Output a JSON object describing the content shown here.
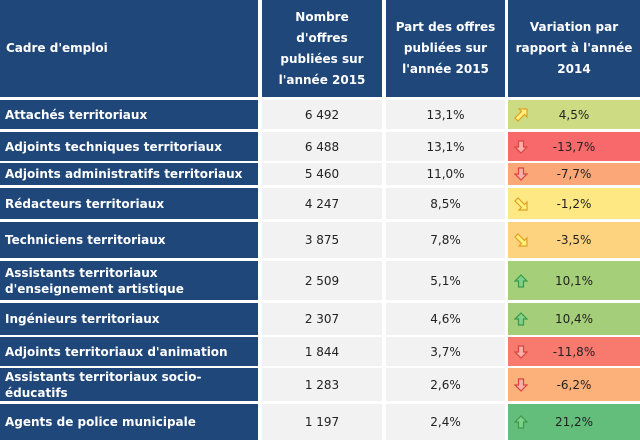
{
  "headers": [
    "Cadre d'emploi",
    "Nombre d'offres publiées sur l'année 2015",
    "Part des offres publiées sur l'année 2015",
    "Variation par rapport à l'année 2014"
  ],
  "rows": [
    {
      "name": "Attachés territoriaux",
      "count": "6 492",
      "share": "13,1%",
      "variation": "4,5%",
      "trend": "up-right",
      "color": "#cddc82"
    },
    {
      "name": "Adjoints techniques territoriaux",
      "count": "6 488",
      "share": "13,1%",
      "variation": "-13,7%",
      "trend": "down",
      "color": "#f8696b"
    },
    {
      "name": "Adjoints administratifs territoriaux",
      "count": "5 460",
      "share": "11,0%",
      "variation": "-7,7%",
      "trend": "down",
      "color": "#fba777"
    },
    {
      "name": "Rédacteurs territoriaux",
      "count": "4 247",
      "share": "8,5%",
      "variation": "-1,2%",
      "trend": "down-right",
      "color": "#fee883"
    },
    {
      "name": "Techniciens territoriaux",
      "count": "3 875",
      "share": "7,8%",
      "variation": "-3,5%",
      "trend": "down-right",
      "color": "#fed380"
    },
    {
      "name": "Assistants territoriaux d'enseignement artistique",
      "count": "2 509",
      "share": "5,1%",
      "variation": "10,1%",
      "trend": "up",
      "color": "#a6cf7a"
    },
    {
      "name": "Ingénieurs territoriaux",
      "count": "2 307",
      "share": "4,6%",
      "variation": "10,4%",
      "trend": "up",
      "color": "#a4ce7a"
    },
    {
      "name": "Adjoints territoriaux d'animation",
      "count": "1 844",
      "share": "3,7%",
      "variation": "-11,8%",
      "trend": "down",
      "color": "#f87a6e"
    },
    {
      "name": "Assistants territoriaux socio-éducatifs",
      "count": "1 283",
      "share": "2,6%",
      "variation": "-6,2%",
      "trend": "down",
      "color": "#fcb07a"
    },
    {
      "name": "Agents de police municipale",
      "count": "1 197",
      "share": "2,4%",
      "variation": "21,2%",
      "trend": "up",
      "color": "#63be7b"
    }
  ]
}
